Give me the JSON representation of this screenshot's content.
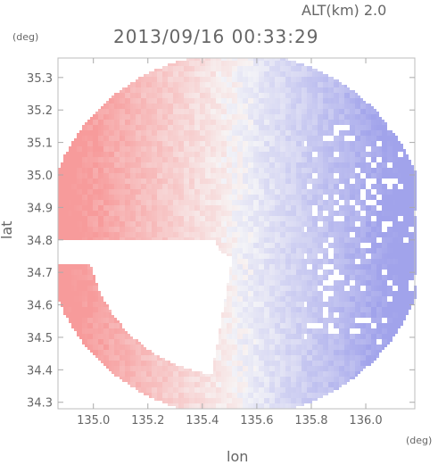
{
  "header": {
    "altitude_label": "ALT(km) 2.0",
    "timestamp": "2013/09/16 00:33:29"
  },
  "chart_data": {
    "type": "heatmap",
    "title": "2013/09/16 00:33:29",
    "xlabel": "lon",
    "ylabel": "lat",
    "x_unit": "(deg)",
    "y_unit": "(deg)",
    "xlim": [
      134.87,
      136.18
    ],
    "ylim": [
      34.28,
      35.36
    ],
    "x_ticks": [
      135.0,
      135.2,
      135.4,
      135.6,
      135.8,
      136.0
    ],
    "x_tick_labels": [
      "135.0",
      "135.2",
      "135.4",
      "135.6",
      "135.8",
      "136.0"
    ],
    "y_ticks": [
      34.3,
      34.4,
      34.5,
      34.6,
      34.7,
      34.8,
      34.9,
      35.0,
      35.1,
      35.2,
      35.3
    ],
    "y_tick_labels": [
      "34.3",
      "34.4",
      "34.5",
      "34.6",
      "34.7",
      "34.8",
      "34.9",
      "35.0",
      "35.1",
      "35.2",
      "35.3"
    ],
    "radar_center": {
      "lon": 135.52,
      "lat": 34.82
    },
    "radar_range_deg": {
      "lon": 0.7,
      "lat": 0.56
    },
    "grid": false,
    "colormap": {
      "positive": "#f4a3a3",
      "negative": "#a6a8f0",
      "neutral": "#f7f3f3"
    }
  }
}
